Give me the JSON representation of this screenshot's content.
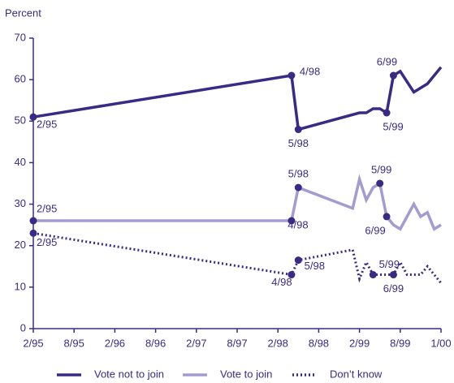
{
  "chart_data": {
    "type": "line",
    "y_axis_label": "Percent",
    "xlim": [
      0,
      60
    ],
    "xticks": [
      {
        "value": 0,
        "label": "2/95"
      },
      {
        "value": 6,
        "label": "8/95"
      },
      {
        "value": 12,
        "label": "2/96"
      },
      {
        "value": 18,
        "label": "8/96"
      },
      {
        "value": 24,
        "label": "2/97"
      },
      {
        "value": 30,
        "label": "8/97"
      },
      {
        "value": 36,
        "label": "2/98"
      },
      {
        "value": 42,
        "label": "8/98"
      },
      {
        "value": 48,
        "label": "2/99"
      },
      {
        "value": 54,
        "label": "8/99"
      },
      {
        "value": 60,
        "label": "1/00"
      }
    ],
    "ylim": [
      0,
      70
    ],
    "yticks": [
      0,
      10,
      20,
      30,
      40,
      50,
      60,
      70
    ],
    "grid": false,
    "legend": "bottom",
    "series": [
      {
        "name": "Vote not to join",
        "color": "#3b2a85",
        "style": "solid",
        "x": [
          0,
          38,
          39,
          48,
          49,
          50,
          51,
          52,
          53,
          54,
          56,
          58,
          60
        ],
        "values": [
          51,
          61,
          48,
          52,
          52,
          53,
          53,
          52,
          61,
          62,
          57,
          59,
          63
        ]
      },
      {
        "name": "Vote to join",
        "color": "#a49bd0",
        "style": "solid",
        "x": [
          0,
          38,
          39,
          47,
          48,
          49,
          50,
          51,
          52,
          53,
          54,
          56,
          57,
          58,
          59,
          60
        ],
        "values": [
          26,
          26,
          34,
          29,
          36,
          31,
          34,
          35,
          27,
          25,
          24,
          30,
          27,
          28,
          24,
          25
        ]
      },
      {
        "name": "Don’t know",
        "color": "#3b2a85",
        "style": "dotted",
        "x": [
          0,
          38,
          39,
          47,
          48,
          49,
          50,
          51,
          52,
          53,
          54,
          55,
          57,
          58,
          60
        ],
        "values": [
          23,
          13,
          16.5,
          19,
          12,
          16,
          13,
          13,
          13,
          13,
          16,
          13,
          13,
          15,
          11
        ]
      }
    ],
    "annotations": [
      "2/95",
      "4/98",
      "5/98",
      "5/99",
      "6/99",
      "2/95",
      "4/98",
      "5/98",
      "5/99",
      "6/99",
      "2/95",
      "4/98",
      "5/98",
      "5/99",
      "6/99"
    ]
  }
}
